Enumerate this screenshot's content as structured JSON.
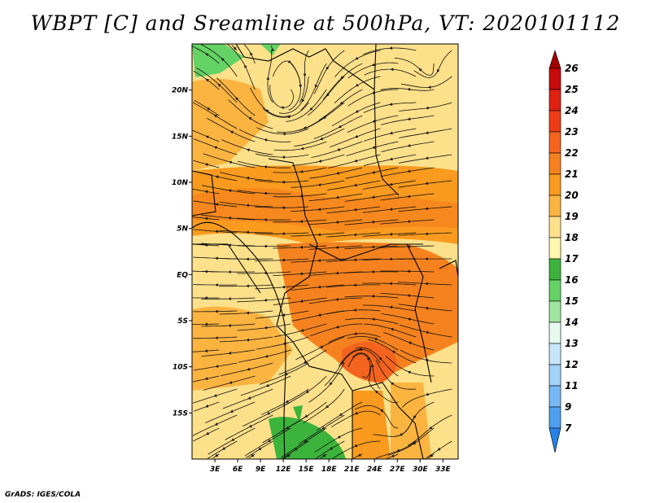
{
  "title": "WBPT [C] and Sreamline at 500hPa, VT: 2020101112",
  "credit": "GrADS: IGES/COLA",
  "chart_data": {
    "type": "heatmap",
    "title": "WBPT [C] and Sreamline at 500hPa, VT: 2020101112",
    "variable": "Wet-bulb potential temperature",
    "units": "C",
    "level": "500hPa",
    "valid_time": "2020101112",
    "overlay": "streamlines",
    "x_range": [
      0,
      35
    ],
    "y_range": [
      -20,
      25
    ],
    "x_ticks": [
      {
        "value": 3,
        "label": "3E"
      },
      {
        "value": 6,
        "label": "6E"
      },
      {
        "value": 9,
        "label": "9E"
      },
      {
        "value": 12,
        "label": "12E"
      },
      {
        "value": 15,
        "label": "15E"
      },
      {
        "value": 18,
        "label": "18E"
      },
      {
        "value": 21,
        "label": "21E"
      },
      {
        "value": 24,
        "label": "24E"
      },
      {
        "value": 27,
        "label": "27E"
      },
      {
        "value": 30,
        "label": "30E"
      },
      {
        "value": 33,
        "label": "33E"
      }
    ],
    "y_ticks": [
      {
        "value": 20,
        "label": "20N"
      },
      {
        "value": 15,
        "label": "15N"
      },
      {
        "value": 10,
        "label": "10N"
      },
      {
        "value": 5,
        "label": "5N"
      },
      {
        "value": 0,
        "label": "EQ"
      },
      {
        "value": -5,
        "label": "5S"
      },
      {
        "value": -10,
        "label": "10S"
      },
      {
        "value": -15,
        "label": "15S"
      }
    ],
    "colorbar": {
      "levels": [
        "26",
        "25",
        "24",
        "23",
        "22",
        "21",
        "20",
        "19",
        "18",
        "17",
        "16",
        "15",
        "14",
        "13",
        "12",
        "11",
        "9",
        "7"
      ],
      "colors": [
        "#a50000",
        "#c80a0a",
        "#e02010",
        "#f03c14",
        "#f5641e",
        "#f5821e",
        "#fa9a1e",
        "#fcb441",
        "#fde08a",
        "#fff6b0",
        "#3cb43c",
        "#64d264",
        "#a0e6a0",
        "#e6faf0",
        "#c8e6fa",
        "#a0d2fa",
        "#78b9f5",
        "#50a0f0",
        "#2882e6"
      ]
    }
  }
}
